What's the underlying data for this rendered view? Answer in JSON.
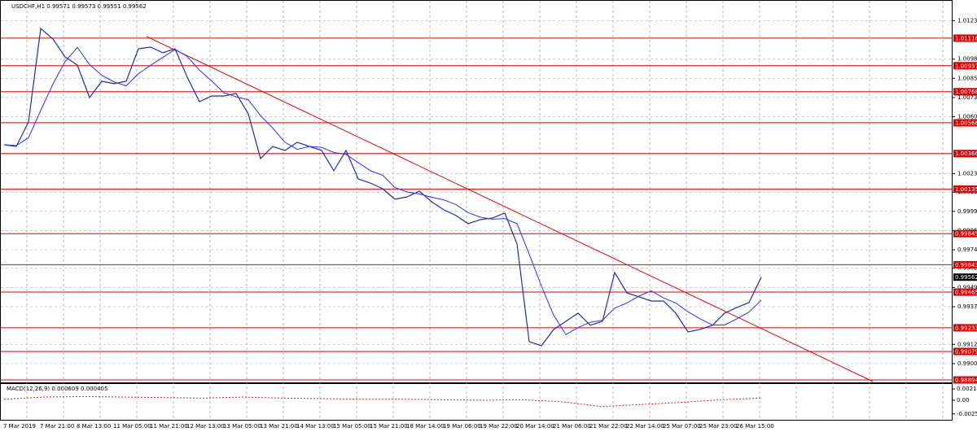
{
  "chart_data": {
    "type": "line",
    "title": "USDCHF,H1 0.99571 0.99573 0.99551 0.99562",
    "x_labels": [
      "7 Mar 2019",
      "7 Mar 21:00",
      "8 Mar 13:00",
      "11 Mar 05:00",
      "11 Mar 21:00",
      "12 Mar 13:00",
      "13 Mar 05:00",
      "13 Mar 21:00",
      "14 Mar 13:00",
      "15 Mar 05:00",
      "15 Mar 21:00",
      "18 Mar 14:00",
      "19 Mar 06:00",
      "19 Mar 22:00",
      "20 Mar 14:00",
      "21 Mar 06:00",
      "21 Mar 22:00",
      "22 Mar 14:00",
      "25 Mar 07:00",
      "25 Mar 23:00",
      "26 Mar 15:00"
    ],
    "series": [
      {
        "color": "#1f2f9f",
        "values": [
          1.00423,
          1.00412,
          1.00571,
          1.01179,
          1.01111,
          1.00994,
          1.00941,
          1.0073,
          1.00836,
          1.0082,
          1.00836,
          1.01047,
          1.01058,
          1.01021,
          1.01047,
          1.00862,
          1.00703,
          1.0074,
          1.0074,
          1.00756,
          1.00624,
          1.00333,
          1.00412,
          1.00386,
          1.00439,
          1.00412,
          1.00386,
          1.00254,
          1.00386,
          1.00201,
          1.00174,
          1.00137,
          1.00069,
          1.00084,
          1.00121,
          1.00053,
          1.0,
          0.99963,
          0.9991,
          0.99936,
          0.99947,
          0.99979,
          0.99778,
          0.99143,
          0.99116,
          0.99222,
          0.99275,
          0.99328,
          0.99249,
          0.99275,
          0.99592,
          0.9946,
          0.99434,
          0.99407,
          0.99407,
          0.99328,
          0.99206,
          0.99222,
          0.99249,
          0.99328,
          0.99365,
          0.99397,
          0.99562
        ]
      },
      {
        "color": "#3030ff",
        "values": [
          1.00423,
          1.00418,
          1.00469,
          1.00646,
          1.00818,
          1.00964,
          1.01056,
          1.00944,
          1.00875,
          1.00832,
          1.00806,
          1.00885,
          1.0094,
          1.00991,
          1.01043,
          1.00997,
          1.00908,
          1.00838,
          1.00761,
          1.00735,
          1.00715,
          1.00613,
          1.00531,
          1.00439,
          1.00393,
          1.00412,
          1.00406,
          1.00373,
          1.0036,
          1.00307,
          1.00254,
          1.00225,
          1.00145,
          1.00116,
          1.00103,
          1.00082,
          1.00065,
          1.00034,
          0.99982,
          0.99952,
          0.99939,
          0.99943,
          0.9991,
          0.99712,
          0.99504,
          0.99315,
          0.99189,
          0.99235,
          0.99269,
          0.99282,
          0.99361,
          0.99394,
          0.9944,
          0.99473,
          0.99427,
          0.99394,
          0.99337,
          0.99291,
          0.99251,
          0.99251,
          0.99291,
          0.99335,
          0.99413
        ]
      }
    ],
    "ylim": [
      0.98878,
      1.01343
    ],
    "yticks": [
      {
        "value": 1.0123,
        "label": "1.01230"
      },
      {
        "value": 1.0098,
        "label": "1.00980"
      },
      1.00855,
      {
        "value": 1.0073,
        "label": "1.00730"
      },
      1.00605,
      1.00235,
      1.00115,
      {
        "value": 0.9999,
        "label": "0.99990"
      },
      0.99865,
      {
        "value": 0.9974,
        "label": "0.99740"
      },
      {
        "value": 0.9962,
        "label": "0.99620"
      },
      0.99495,
      {
        "value": 0.9937,
        "label": "0.99370"
      },
      0.99125,
      {
        "value": 0.99,
        "label": "0.99000"
      }
    ],
    "levels": [
      1.01116,
      1.00937,
      1.00768,
      1.00566,
      1.00366,
      1.00135,
      0.99845,
      0.99643,
      0.99465,
      0.99233,
      0.99079,
      0.98894
    ],
    "levels_color": "#e00000",
    "last": 0.99562,
    "trendline": [
      1.01127,
      0.98884
    ],
    "grid": true,
    "macd": {
      "label": "MACD(12,26,9) 0.000609 0.000405",
      "ylim": [
        -0.0037,
        0.00307
      ],
      "yticks": [
        0.00213,
        {
          "value": 0,
          "label": "0.00"
        },
        -0.00259
      ],
      "color": "#d02020",
      "signal": [
        0.0002,
        0.0006,
        0.0007,
        0.0006,
        0.0005,
        0.0004,
        0.0006,
        0.0004,
        0.0003,
        0.0002,
        0.0002,
        0.0001,
        0,
        0.0001,
        -0.0003,
        -0.0012,
        -0.0008,
        -0.0004,
        0.0001,
        0.0004
      ]
    }
  }
}
